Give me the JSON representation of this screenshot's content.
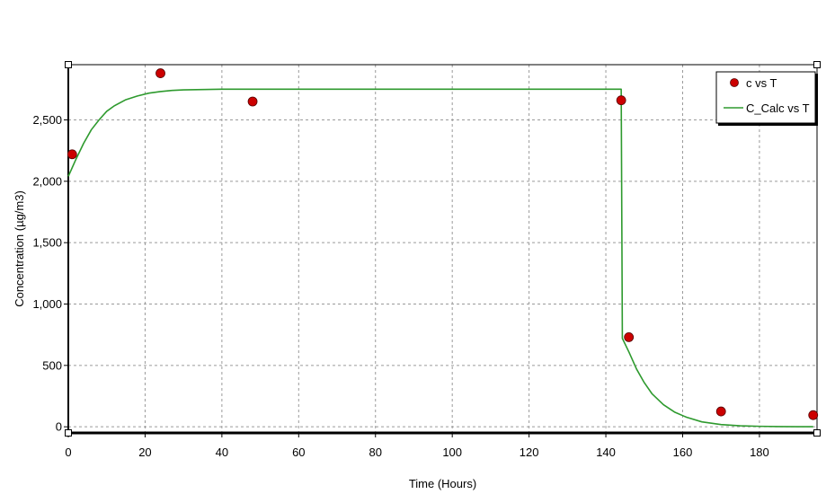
{
  "chart_data": {
    "type": "scatter",
    "title": "",
    "xlabel": "Time (Hours)",
    "ylabel": "Concentration (µg/m3)",
    "xlim": [
      0,
      195
    ],
    "ylim": [
      -50,
      2950
    ],
    "x_ticks": [
      0,
      20,
      40,
      60,
      80,
      100,
      120,
      140,
      160,
      180
    ],
    "x_tick_labels": [
      "0",
      "20",
      "40",
      "60",
      "80",
      "100",
      "120",
      "140",
      "160",
      "180"
    ],
    "y_ticks": [
      0,
      500,
      1000,
      1500,
      2000,
      2500
    ],
    "y_tick_labels": [
      "0",
      "500",
      "1,000",
      "1,500",
      "2,000",
      "2,500"
    ],
    "grid": true,
    "legend_position": "top-right",
    "series": [
      {
        "name": "c vs T",
        "kind": "scatter",
        "color": "#cc0000",
        "x": [
          1,
          24,
          48,
          144,
          146,
          170,
          194
        ],
        "y": [
          2220,
          2880,
          2650,
          2660,
          730,
          125,
          95
        ]
      },
      {
        "name": "C_Calc vs T",
        "kind": "line",
        "color": "#2e9a2e",
        "x": [
          0,
          2,
          4,
          6,
          8,
          10,
          12,
          15,
          18,
          21,
          24,
          27,
          30,
          40,
          60,
          80,
          100,
          120,
          140,
          144,
          144.3,
          146,
          148,
          150,
          152,
          155,
          158,
          161,
          165,
          170,
          175,
          180,
          185,
          190,
          194
        ],
        "y": [
          2040,
          2180,
          2310,
          2420,
          2500,
          2570,
          2615,
          2665,
          2695,
          2718,
          2731,
          2740,
          2745,
          2750,
          2750,
          2750,
          2750,
          2750,
          2750,
          2750,
          720,
          610,
          470,
          360,
          270,
          180,
          118,
          78,
          40,
          18,
          8,
          4,
          2,
          1,
          1
        ]
      }
    ]
  }
}
